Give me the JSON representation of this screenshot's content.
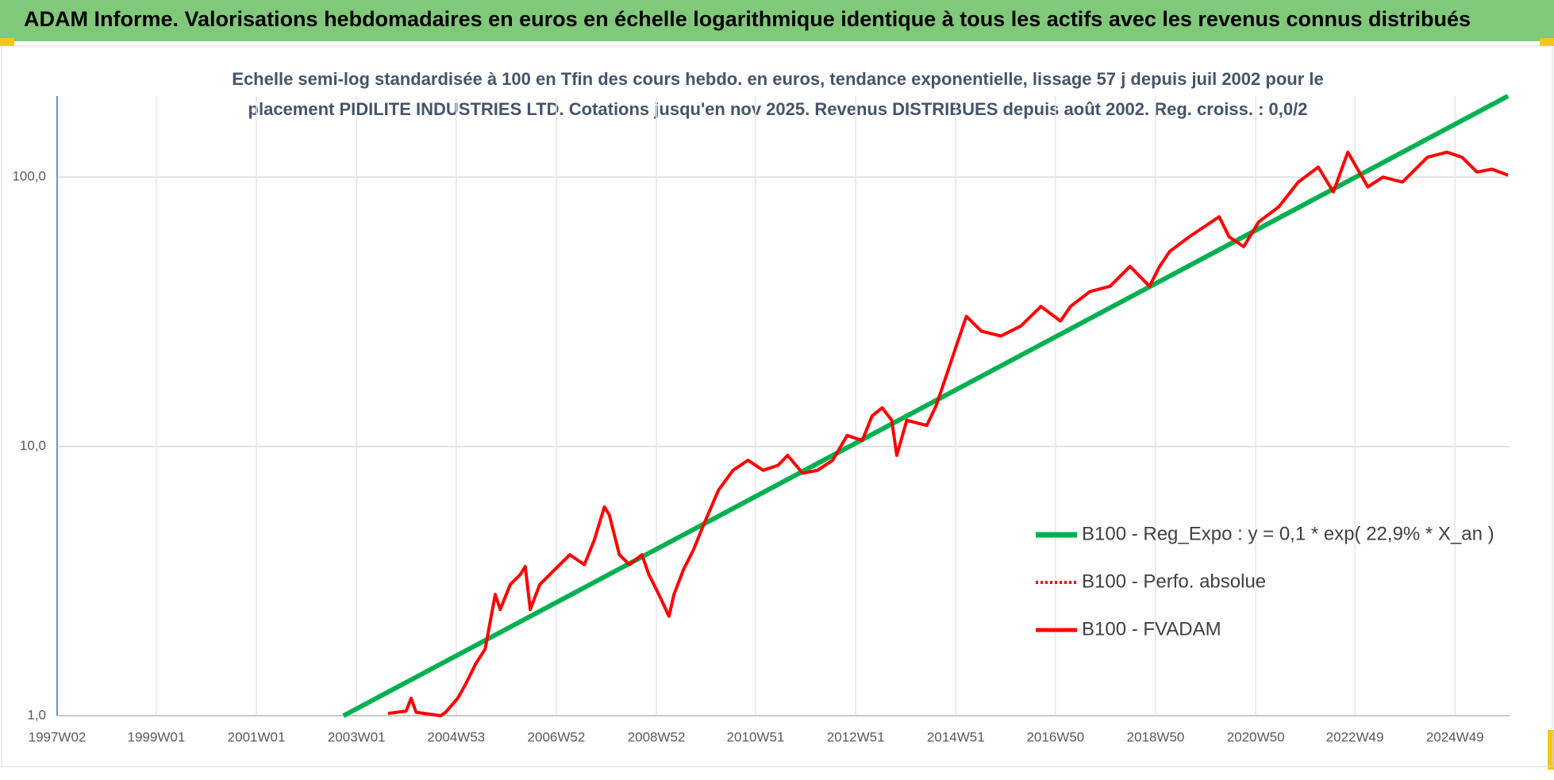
{
  "header": {
    "title": "ADAM Informe. Valorisations hebdomadaires en euros en échelle logarithmique identique à tous les actifs avec les revenus connus distribués"
  },
  "chart_data": {
    "type": "line",
    "subtitle": [
      "Echelle semi-log standardisée à 100 en Tfin des cours hebdo. en euros, tendance exponentielle, lissage 57 j depuis juil 2002 pour le",
      "placement PIDILITE INDUSTRIES LTD. Cotations jusqu'en nov 2025. Revenus DISTRIBUES depuis août 2002. Reg. croiss. : 0,0/2"
    ],
    "log_y": true,
    "grid": true,
    "legend": "right",
    "xlim": [
      1997.02,
      2026.03
    ],
    "ylim": [
      1,
      200
    ],
    "yticks": [
      {
        "value": 1,
        "label": "1,0"
      },
      {
        "value": 10,
        "label": "10,0"
      },
      {
        "value": 100,
        "label": "100,0"
      }
    ],
    "xticks": [
      {
        "value": 1997.02,
        "label": "1997W02"
      },
      {
        "value": 1999.0,
        "label": "1999W01"
      },
      {
        "value": 2001.0,
        "label": "2001W01"
      },
      {
        "value": 2003.0,
        "label": "2003W01"
      },
      {
        "value": 2004.99,
        "label": "2004W53"
      },
      {
        "value": 2006.99,
        "label": "2006W52"
      },
      {
        "value": 2008.99,
        "label": "2008W52"
      },
      {
        "value": 2010.97,
        "label": "2010W51"
      },
      {
        "value": 2012.97,
        "label": "2012W51"
      },
      {
        "value": 2014.97,
        "label": "2014W51"
      },
      {
        "value": 2016.96,
        "label": "2016W50"
      },
      {
        "value": 2018.96,
        "label": "2018W50"
      },
      {
        "value": 2020.96,
        "label": "2020W50"
      },
      {
        "value": 2022.94,
        "label": "2022W49"
      },
      {
        "value": 2024.94,
        "label": "2024W49"
      }
    ],
    "series": [
      {
        "name": "B100 - Reg_Expo : y = 0,1 * exp( 22,9% *  X_an )",
        "color": "#00b050",
        "style": "solid",
        "width": 6,
        "x": [
          2002.74,
          2026.0
        ],
        "values": [
          1,
          200
        ]
      },
      {
        "name": "B100 - Perfo. absolue",
        "color": "#ff0000",
        "style": "dotted",
        "width": 3,
        "x": [
          2003.63,
          2003.99,
          2004.09,
          2004.19,
          2004.68,
          2004.78,
          2005.02,
          2005.18,
          2005.38,
          2005.57,
          2005.77,
          2005.87,
          2006.07,
          2006.27,
          2006.37,
          2006.47,
          2006.66,
          2006.96,
          2007.26,
          2007.55,
          2007.75,
          2007.95,
          2008.05,
          2008.25,
          2008.45,
          2008.7,
          2008.84,
          2009.04,
          2009.24,
          2009.34,
          2009.53,
          2009.73,
          2009.93,
          2010.23,
          2010.52,
          2010.82,
          2011.12,
          2011.42,
          2011.61,
          2011.91,
          2012.21,
          2012.51,
          2012.8,
          2013.1,
          2013.3,
          2013.5,
          2013.69,
          2013.79,
          2013.99,
          2014.39,
          2014.58,
          2014.78,
          2014.98,
          2015.18,
          2015.48,
          2015.87,
          2016.27,
          2016.67,
          2017.06,
          2017.26,
          2017.65,
          2018.05,
          2018.45,
          2018.84,
          2019.04,
          2019.24,
          2019.63,
          2020.23,
          2020.43,
          2020.72,
          2021.02,
          2021.42,
          2021.81,
          2022.21,
          2022.51,
          2022.8,
          2023.2,
          2023.5,
          2023.89,
          2024.39,
          2024.78,
          2025.08,
          2025.38,
          2025.68,
          2026.0
        ],
        "values": [
          1.02,
          1.04,
          1.16,
          1.03,
          1.0,
          1.03,
          1.16,
          1.31,
          1.56,
          1.77,
          2.82,
          2.48,
          3.07,
          3.34,
          3.58,
          2.48,
          3.07,
          3.49,
          3.96,
          3.64,
          4.5,
          5.96,
          5.56,
          3.96,
          3.64,
          3.96,
          3.34,
          2.82,
          2.34,
          2.82,
          3.49,
          4.13,
          5.11,
          6.88,
          8.15,
          8.88,
          8.15,
          8.51,
          9.26,
          7.95,
          8.15,
          8.88,
          10.98,
          10.52,
          13.0,
          13.9,
          12.5,
          9.26,
          12.5,
          11.96,
          14.2,
          18.3,
          23.6,
          30.4,
          26.8,
          25.7,
          28.0,
          33.1,
          29.2,
          33.1,
          37.6,
          39.3,
          46.6,
          39.3,
          46.6,
          52.9,
          60.0,
          71.2,
          60.0,
          55.2,
          68.2,
          77.5,
          95.8,
          108.9,
          88.0,
          123.7,
          91.9,
          100,
          95.8,
          118.5,
          123.7,
          118.5,
          104.4,
          107.0,
          101.7
        ]
      },
      {
        "name": "B100 - FVADAM",
        "color": "#ff0000",
        "style": "solid",
        "width": 4,
        "x": [
          2003.63,
          2003.99,
          2004.09,
          2004.19,
          2004.68,
          2004.78,
          2005.02,
          2005.18,
          2005.38,
          2005.57,
          2005.77,
          2005.87,
          2006.07,
          2006.27,
          2006.37,
          2006.47,
          2006.66,
          2006.96,
          2007.26,
          2007.55,
          2007.75,
          2007.95,
          2008.05,
          2008.25,
          2008.45,
          2008.7,
          2008.84,
          2009.04,
          2009.24,
          2009.34,
          2009.53,
          2009.73,
          2009.93,
          2010.23,
          2010.52,
          2010.82,
          2011.12,
          2011.42,
          2011.61,
          2011.91,
          2012.21,
          2012.51,
          2012.8,
          2013.1,
          2013.3,
          2013.5,
          2013.69,
          2013.79,
          2013.99,
          2014.39,
          2014.58,
          2014.78,
          2014.98,
          2015.18,
          2015.48,
          2015.87,
          2016.27,
          2016.67,
          2017.06,
          2017.26,
          2017.65,
          2018.05,
          2018.45,
          2018.84,
          2019.04,
          2019.24,
          2019.63,
          2020.23,
          2020.43,
          2020.72,
          2021.02,
          2021.42,
          2021.81,
          2022.21,
          2022.51,
          2022.8,
          2023.2,
          2023.5,
          2023.89,
          2024.39,
          2024.78,
          2025.08,
          2025.38,
          2025.68,
          2026.0
        ],
        "values": [
          1.02,
          1.04,
          1.16,
          1.03,
          1.0,
          1.03,
          1.16,
          1.31,
          1.56,
          1.77,
          2.82,
          2.48,
          3.07,
          3.34,
          3.58,
          2.48,
          3.07,
          3.49,
          3.96,
          3.64,
          4.5,
          5.96,
          5.56,
          3.96,
          3.64,
          3.96,
          3.34,
          2.82,
          2.34,
          2.82,
          3.49,
          4.13,
          5.11,
          6.88,
          8.15,
          8.88,
          8.15,
          8.51,
          9.26,
          7.95,
          8.15,
          8.88,
          10.98,
          10.52,
          13.0,
          13.9,
          12.5,
          9.26,
          12.5,
          11.96,
          14.2,
          18.3,
          23.6,
          30.4,
          26.8,
          25.7,
          28.0,
          33.1,
          29.2,
          33.1,
          37.6,
          39.3,
          46.6,
          39.3,
          46.6,
          52.9,
          60.0,
          71.2,
          60.0,
          55.2,
          68.2,
          77.5,
          95.8,
          108.9,
          88.0,
          123.7,
          91.9,
          100,
          95.8,
          118.5,
          123.7,
          118.5,
          104.4,
          107.0,
          101.7
        ]
      }
    ]
  }
}
